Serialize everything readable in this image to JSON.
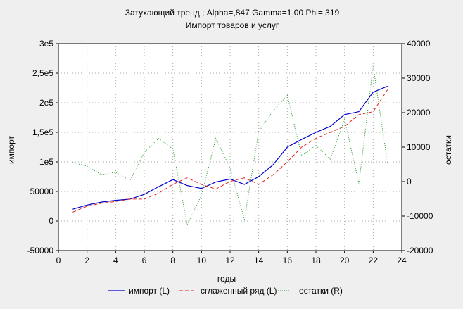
{
  "chart_data": {
    "type": "line",
    "title": "Затухающий тренд ; Alpha=,847 Gamma=1,00 Phi=,319",
    "subtitle": "Импорт товаров и услуг",
    "xlabel": "годы",
    "ylabel_left": "импорт",
    "ylabel_right": "остатки",
    "xlim": [
      0,
      24
    ],
    "ylim_left": [
      -50000,
      300000
    ],
    "ylim_right": [
      -20000,
      40000
    ],
    "x_ticks": [
      "0",
      "2",
      "4",
      "6",
      "8",
      "10",
      "12",
      "14",
      "16",
      "18",
      "20",
      "22",
      "24"
    ],
    "y_ticks_left": [
      "-50000",
      "0",
      "50000",
      "1e5",
      "1,5e5",
      "2e5",
      "2,5e5",
      "3e5"
    ],
    "y_ticks_right": [
      "-20000",
      "-10000",
      "0",
      "10000",
      "20000",
      "30000",
      "40000"
    ],
    "grid": true,
    "legend_position": "bottom",
    "x": [
      1,
      2,
      3,
      4,
      5,
      6,
      7,
      8,
      9,
      10,
      11,
      12,
      13,
      14,
      15,
      16,
      17,
      18,
      19,
      20,
      21,
      22,
      23
    ],
    "series": [
      {
        "name": "импорт (L)",
        "axis": "left",
        "color": "#0000cc",
        "style": "solid",
        "values": [
          20000,
          27000,
          32000,
          35000,
          37000,
          45000,
          58000,
          70000,
          60000,
          55000,
          66000,
          71000,
          62000,
          75000,
          95000,
          125000,
          138000,
          150000,
          160000,
          180000,
          185000,
          218000,
          228000
        ]
      },
      {
        "name": "сглаженный ряд (L)",
        "axis": "left",
        "color": "#e02020",
        "style": "dashed",
        "values": [
          15000,
          25000,
          30000,
          33000,
          37000,
          37000,
          47000,
          62000,
          73000,
          62000,
          54000,
          67000,
          73000,
          62000,
          78000,
          100000,
          125000,
          140000,
          150000,
          160000,
          180000,
          185000,
          222000
        ]
      },
      {
        "name": "остатки (R)",
        "axis": "right",
        "color": "#2a9d2a",
        "style": "dotted",
        "values": [
          5500,
          4500,
          2000,
          2700,
          300,
          8500,
          12500,
          9500,
          -12500,
          -4000,
          12500,
          4000,
          -11000,
          14500,
          20500,
          25000,
          7500,
          10500,
          6500,
          18000,
          -500,
          33500,
          5500
        ]
      }
    ]
  }
}
